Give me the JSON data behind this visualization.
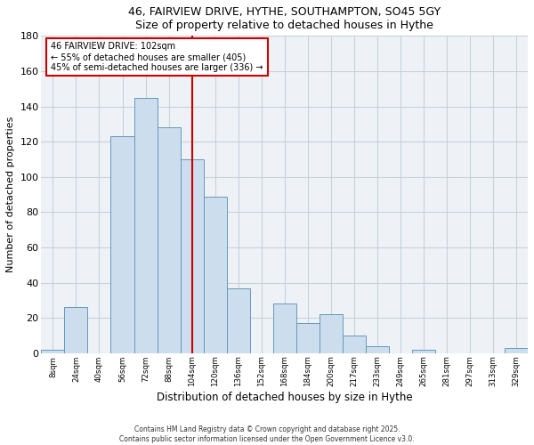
{
  "title": "46, FAIRVIEW DRIVE, HYTHE, SOUTHAMPTON, SO45 5GY",
  "subtitle": "Size of property relative to detached houses in Hythe",
  "xlabel": "Distribution of detached houses by size in Hythe",
  "ylabel": "Number of detached properties",
  "bar_labels": [
    "8sqm",
    "24sqm",
    "40sqm",
    "56sqm",
    "72sqm",
    "88sqm",
    "104sqm",
    "120sqm",
    "136sqm",
    "152sqm",
    "168sqm",
    "184sqm",
    "200sqm",
    "217sqm",
    "233sqm",
    "249sqm",
    "265sqm",
    "281sqm",
    "297sqm",
    "313sqm",
    "329sqm"
  ],
  "bar_values": [
    2,
    26,
    0,
    123,
    145,
    128,
    110,
    89,
    37,
    0,
    28,
    17,
    22,
    10,
    4,
    0,
    2,
    0,
    0,
    0,
    3
  ],
  "bar_color": "#ccdded",
  "bar_edge_color": "#6699bb",
  "ylim": [
    0,
    180
  ],
  "yticks": [
    0,
    20,
    40,
    60,
    80,
    100,
    120,
    140,
    160,
    180
  ],
  "marker_x_label": "104sqm",
  "marker_line_color": "#cc0000",
  "annotation_title": "46 FAIRVIEW DRIVE: 102sqm",
  "annotation_line1": "← 55% of detached houses are smaller (405)",
  "annotation_line2": "45% of semi-detached houses are larger (336) →",
  "annotation_box_color": "#ffffff",
  "annotation_box_edge": "#cc0000",
  "grid_color": "#c8d0da",
  "background_color": "#eef2f7",
  "footer1": "Contains HM Land Registry data © Crown copyright and database right 2025.",
  "footer2": "Contains public sector information licensed under the Open Government Licence v3.0."
}
